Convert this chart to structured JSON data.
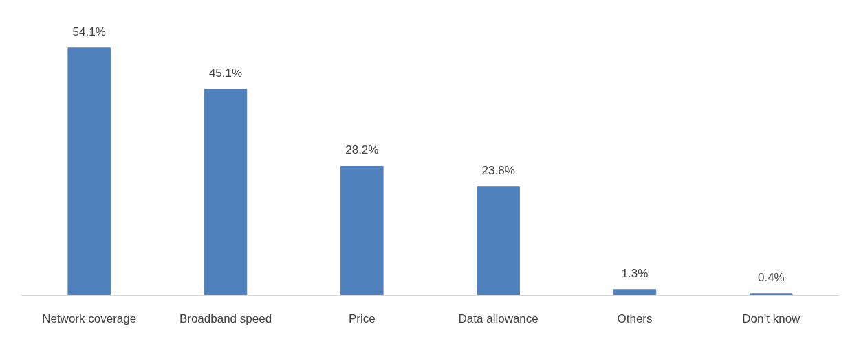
{
  "chart_data": {
    "type": "bar",
    "categories": [
      "Network coverage",
      "Broadband speed",
      "Price",
      "Data allowance",
      "Others",
      "Don’t know"
    ],
    "values": [
      54.1,
      45.1,
      28.2,
      23.8,
      1.3,
      0.4
    ],
    "value_labels": [
      "54.1%",
      "45.1%",
      "28.2%",
      "23.8%",
      "1.3%",
      "0.4%"
    ],
    "color": "#4f81bd",
    "grid": false
  }
}
